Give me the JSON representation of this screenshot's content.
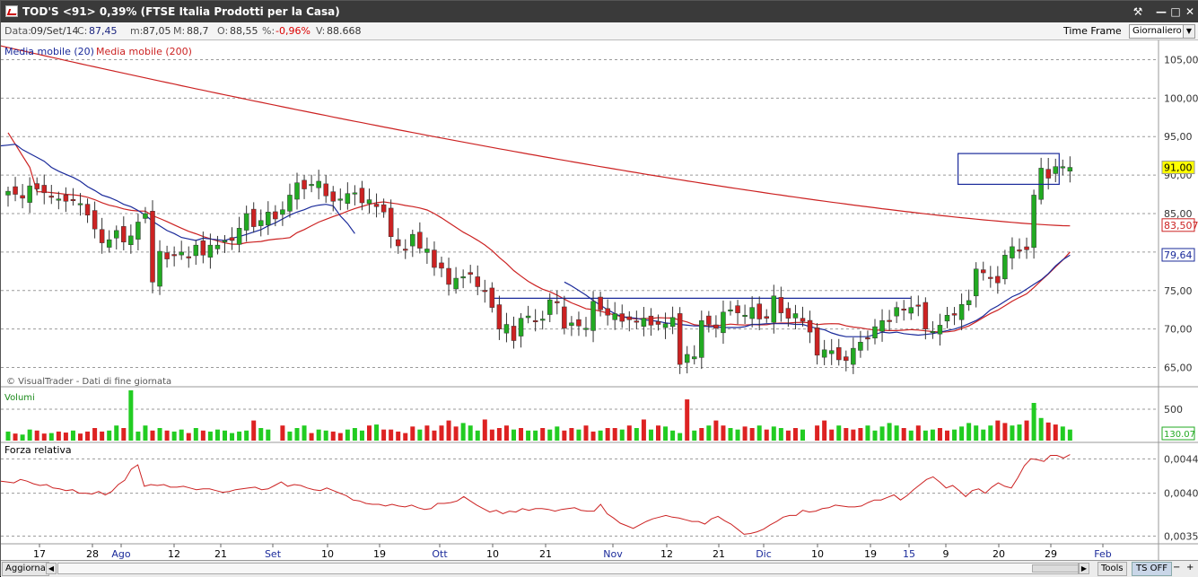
{
  "window": {
    "title": "TOD'S <91> 0,39%  (FTSE Italia Prodotti per la Casa)",
    "buttons": [
      "⚒",
      "—",
      "□",
      "✕"
    ]
  },
  "infobar": {
    "data_label": "Data:",
    "data_value": "09/Set/14",
    "c_label": "C:",
    "c_value": "87,45",
    "m_label": "m:",
    "m_value": "87,05",
    "M_label": "M:",
    "M_value": "88,7",
    "o_label": "O:",
    "o_value": "88,55",
    "pct_label": "%:",
    "pct_value": "-0,96%",
    "v_label": "V:",
    "v_value": "88.668",
    "timeframe_label": "Time Frame",
    "timeframe_value": "Giornaliero"
  },
  "chart_data": {
    "type": "candlestick",
    "legend": [
      {
        "name": "Media mobile (20)",
        "color": "#1a2a9a"
      },
      {
        "name": "Media mobile (200)",
        "color": "#cc2222"
      }
    ],
    "watermark": "© VisualTrader - Dati di fine giornata",
    "price_axis": {
      "ticks": [
        65,
        70,
        75,
        80,
        85,
        90,
        95,
        100,
        105
      ],
      "tick_labels": [
        "65,00",
        "70,00",
        "75,00",
        "80,00",
        "85,00",
        "90,00",
        "95,00",
        "100,00",
        "105,00"
      ],
      "ylim": [
        62.5,
        107.5
      ],
      "last_price_label": "91,00",
      "ma200_label": "83,507",
      "ma20_label": "79,64"
    },
    "x_axis_labels": [
      "17",
      "28",
      "Ago",
      "12",
      "21",
      "Set",
      "10",
      "19",
      "Ott",
      "10",
      "21",
      "Nov",
      "12",
      "21",
      "Dic",
      "10",
      "19",
      "15",
      "9",
      "20",
      "29",
      "Feb"
    ],
    "closes": [
      87.9,
      87.5,
      87.0,
      88.6,
      88.2,
      87.7,
      87.2,
      86.9,
      86.6,
      86.8,
      86.3,
      84.8,
      83.0,
      81.2,
      81.6,
      82.8,
      81.3,
      82.1,
      83.9,
      85.0,
      76.1,
      80.1,
      79.1,
      79.6,
      80.0,
      79.4,
      80.9,
      79.6,
      80.9,
      80.9,
      81.5,
      81.5,
      83.1,
      85.0,
      83.3,
      84.1,
      85.2,
      84.3,
      85.5,
      87.4,
      89.0,
      88.2,
      88.8,
      89.2,
      87.3,
      86.6,
      86.9,
      87.6,
      87.7,
      86.4,
      86.8,
      85.9,
      85.2,
      82.0,
      80.8,
      80.3,
      82.3,
      80.5,
      80.4,
      78.0,
      77.9,
      75.8,
      76.6,
      76.8,
      77.1,
      75.5,
      74.9,
      72.8,
      70.0,
      70.6,
      68.5,
      71.4,
      71.7,
      71.1,
      71.3,
      73.8,
      73.4,
      70.1,
      70.8,
      70.4,
      70.1,
      73.6,
      72.5,
      71.8,
      72.0,
      71.0,
      71.2,
      70.9,
      71.4,
      70.5,
      70.6,
      70.7,
      71.5,
      65.4,
      66.7,
      66.4,
      71.1,
      70.6,
      70.1,
      72.2,
      72.5,
      72.1,
      71.8,
      72.8,
      71.3,
      71.4,
      74.3,
      72.1,
      71.4,
      72.0,
      71.0,
      69.6,
      66.6,
      67.3,
      67.2,
      66.0,
      65.9,
      67.5,
      68.3,
      68.7,
      70.3,
      71.1,
      71.1,
      72.8,
      72.6,
      72.8,
      73.0,
      70.0,
      69.7,
      70.5,
      71.8,
      71.8,
      73.2,
      73.7,
      77.8,
      77.3,
      76.6,
      76.0,
      79.6,
      80.7,
      80.2,
      80.3,
      87.4,
      90.9,
      89.6,
      91.1,
      91.1,
      91.0
    ],
    "ma20": [
      93.8,
      93.9,
      94.0,
      93.3,
      92.8,
      92.3,
      91.8,
      91.0,
      90.5,
      90.1,
      89.7,
      89.2,
      88.5,
      88.0,
      87.4,
      87.1,
      86.7,
      86.2,
      85.9,
      85.4,
      84.8,
      84.0,
      83.4,
      82.8,
      82.4,
      81.9,
      81.7,
      81.5,
      81.8,
      81.7,
      81.6,
      81.5,
      81.8,
      82.0,
      82.3,
      82.6,
      82.9,
      83.4,
      83.8,
      84.3,
      84.8,
      85.2,
      85.5,
      85.9,
      86.1,
      86.2,
      86.0,
      84.7,
      83.7,
      82.4
    ],
    "ma20_2": [
      76.1,
      75.6,
      75.0,
      74.4,
      73.7,
      73.1,
      72.5,
      72.0,
      71.6,
      71.5,
      71.4,
      71.2,
      71.1,
      71.0,
      70.8,
      70.7,
      70.6,
      70.5,
      70.4,
      70.4,
      70.3,
      70.3,
      70.2,
      70.2,
      70.2,
      70.3,
      70.6,
      70.6,
      70.7,
      70.7,
      70.7,
      70.7,
      70.6,
      70.6,
      70.3,
      70.1,
      69.9,
      69.5,
      69.2,
      69.0,
      69.0,
      69.0,
      69.0,
      69.3,
      69.6,
      69.5,
      69.6,
      69.4,
      69.3,
      69.2,
      69.3,
      69.4,
      69.6,
      69.8,
      70.0,
      70.3,
      70.7,
      71.1,
      71.7,
      72.5,
      73.0,
      73.6,
      74.2,
      74.6,
      75.2,
      75.8,
      76.4,
      77.2,
      78.2,
      79.0,
      79.6
    ],
    "ma200_label_note": "",
    "resistance": {
      "from_index": 67,
      "to_index": 125,
      "value": 74.0
    },
    "box": {
      "from_index": 132,
      "to_index": 136,
      "low": 88.8,
      "high": 92.8
    },
    "volume": {
      "label": "Volumi",
      "tick_label": "500",
      "last_label": "130.07",
      "values": [
        18,
        14,
        12,
        22,
        20,
        14,
        15,
        18,
        16,
        20,
        14,
        18,
        25,
        18,
        20,
        30,
        25,
        100,
        18,
        30,
        20,
        25,
        20,
        18,
        22,
        15,
        25,
        20,
        18,
        22,
        20,
        15,
        18,
        20,
        40,
        25,
        22,
        30,
        18,
        25,
        30,
        15,
        22,
        20,
        18,
        15,
        22,
        25,
        20,
        30,
        32,
        22,
        22,
        18,
        15,
        28,
        22,
        30,
        20,
        30,
        40,
        28,
        35,
        30,
        20,
        42,
        22,
        25,
        30,
        22,
        25,
        20,
        20,
        25,
        22,
        28,
        20,
        25,
        22,
        30,
        18,
        20,
        25,
        25,
        22,
        30,
        25,
        42,
        22,
        30,
        28,
        20,
        15,
        82,
        20,
        25,
        30,
        40,
        30,
        25,
        22,
        28,
        25,
        30,
        22,
        28,
        25,
        20,
        25,
        22,
        30,
        40,
        22,
        30,
        25,
        22,
        25,
        30,
        20,
        28,
        35,
        30,
        25,
        20,
        30,
        20,
        22,
        25,
        20,
        22,
        28,
        35,
        30,
        22,
        30,
        40,
        35,
        30,
        32,
        40,
        75,
        45,
        36,
        32,
        28,
        22
      ],
      "up": [
        1,
        0,
        1,
        1,
        0,
        0,
        1,
        0,
        0,
        1,
        0,
        0,
        0,
        0,
        1,
        1,
        0,
        1,
        1,
        1,
        0,
        1,
        0,
        1,
        1,
        0,
        1,
        0,
        1,
        1,
        1,
        1,
        1,
        1,
        0,
        1,
        1,
        0,
        1,
        1,
        1,
        0,
        1,
        1,
        0,
        0,
        1,
        1,
        1,
        0,
        1,
        0,
        0,
        0,
        0,
        0,
        1,
        0,
        0,
        0,
        0,
        0,
        1,
        1,
        1,
        0,
        0,
        0,
        0,
        1,
        0,
        1,
        1,
        0,
        1,
        1,
        0,
        0,
        1,
        0,
        0,
        1,
        0,
        0,
        1,
        0,
        1,
        0,
        1,
        0,
        1,
        1,
        1,
        0,
        1,
        0,
        1,
        0,
        0,
        1,
        1,
        0,
        0,
        1,
        0,
        1,
        1,
        0,
        0,
        1,
        0,
        0,
        0,
        1,
        0,
        0,
        0,
        1,
        1,
        1,
        1,
        1,
        0,
        1,
        0,
        1,
        1,
        0,
        0,
        1,
        1,
        1,
        1,
        1,
        1,
        0,
        0,
        1,
        1,
        0,
        1,
        1,
        0,
        0,
        1,
        1
      ]
    },
    "relative_strength": {
      "label": "Forza relativa",
      "tick_labels": [
        "0,0044",
        "0,0040",
        "0,0035"
      ],
      "ticks": [
        0.0044,
        0.004,
        0.0035
      ],
      "ylim": [
        0.00342,
        0.00455
      ],
      "values": [
        0.00414,
        0.00413,
        0.00412,
        0.00416,
        0.00414,
        0.00411,
        0.00409,
        0.0041,
        0.00406,
        0.00405,
        0.00403,
        0.00404,
        0.004,
        0.004,
        0.00399,
        0.00402,
        0.00398,
        0.00402,
        0.0041,
        0.00415,
        0.00428,
        0.00433,
        0.00408,
        0.0041,
        0.00409,
        0.0041,
        0.00407,
        0.00407,
        0.00408,
        0.00406,
        0.00404,
        0.00405,
        0.00405,
        0.00403,
        0.00401,
        0.00402,
        0.00404,
        0.00405,
        0.00406,
        0.00407,
        0.00404,
        0.00405,
        0.00409,
        0.00413,
        0.00408,
        0.0041,
        0.00409,
        0.00406,
        0.00404,
        0.00403,
        0.00406,
        0.00403,
        0.004,
        0.00397,
        0.00392,
        0.00391,
        0.00388,
        0.00387,
        0.00387,
        0.00385,
        0.00387,
        0.00385,
        0.00384,
        0.00386,
        0.00383,
        0.00381,
        0.00382,
        0.00388,
        0.00388,
        0.00389,
        0.00391,
        0.00396,
        0.00391,
        0.00386,
        0.00382,
        0.00378,
        0.0038,
        0.00376,
        0.00379,
        0.00378,
        0.00382,
        0.0038,
        0.00382,
        0.00382,
        0.00381,
        0.00379,
        0.00381,
        0.00382,
        0.00383,
        0.0038,
        0.00379,
        0.00379,
        0.00387,
        0.00376,
        0.00371,
        0.00365,
        0.00362,
        0.00359,
        0.00363,
        0.00367,
        0.0037,
        0.00372,
        0.00374,
        0.00372,
        0.00371,
        0.00369,
        0.00367,
        0.00367,
        0.00364,
        0.0037,
        0.00373,
        0.00368,
        0.00364,
        0.00358,
        0.00352,
        0.00353,
        0.00355,
        0.00358,
        0.00363,
        0.00367,
        0.00372,
        0.00374,
        0.00374,
        0.0038,
        0.00378,
        0.00379,
        0.00382,
        0.00383,
        0.00386,
        0.00385,
        0.00384,
        0.00384,
        0.00385,
        0.00389,
        0.00392,
        0.00392,
        0.00395,
        0.00398,
        0.00392,
        0.00397,
        0.00404,
        0.0041,
        0.00416,
        0.00419,
        0.00413,
        0.00406,
        0.00409,
        0.00403,
        0.00396,
        0.00403,
        0.00405,
        0.004,
        0.00407,
        0.00412,
        0.00408,
        0.00406,
        0.00418,
        0.00432,
        0.0044,
        0.00439,
        0.00437,
        0.00444,
        0.00444,
        0.00441,
        0.00445
      ]
    }
  },
  "statusbar": {
    "aggiorna": "Aggiorna",
    "tools": "Tools",
    "tsoff": "TS OFF",
    "minus": "−",
    "plus": "+"
  }
}
